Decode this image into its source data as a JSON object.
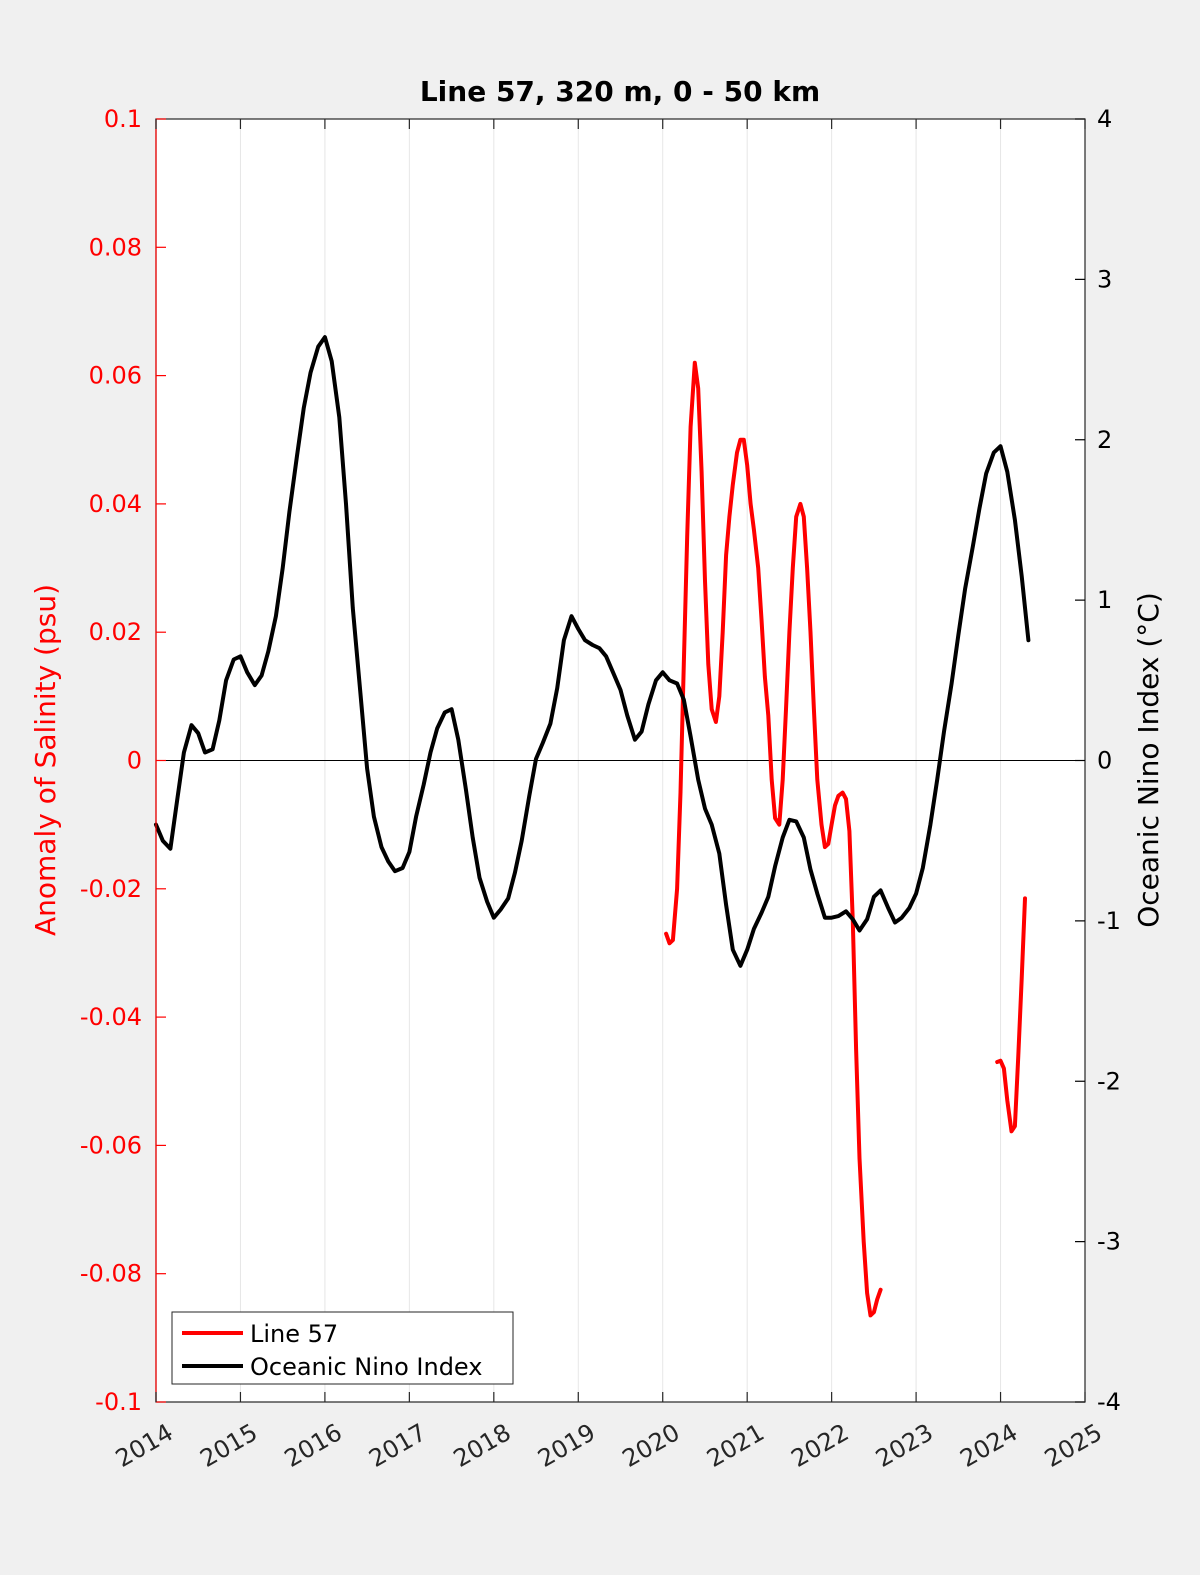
{
  "chart_data": {
    "type": "line",
    "title": "Line 57, 320 m, 0 - 50 km",
    "xlabel": "",
    "ylabel_left": "Anomaly of Salinity (psu)",
    "ylabel_right": "Oceanic Nino Index (°C)",
    "xlim": [
      2014,
      2025
    ],
    "ylim_left": [
      -0.1,
      0.1
    ],
    "ylim_right": [
      -4,
      4
    ],
    "grid": "vertical-x",
    "legend_position": "bottom-left",
    "x_ticks": [
      "2014",
      "2015",
      "2016",
      "2017",
      "2018",
      "2019",
      "2020",
      "2021",
      "2022",
      "2023",
      "2024",
      "2025"
    ],
    "y_left_ticks": [
      "-0.1",
      "-0.08",
      "-0.06",
      "-0.04",
      "-0.02",
      "0",
      "0.02",
      "0.04",
      "0.06",
      "0.08",
      "0.1"
    ],
    "y_right_ticks": [
      "-4",
      "-3",
      "-2",
      "-1",
      "0",
      "1",
      "2",
      "3",
      "4"
    ],
    "colors": {
      "salinity": "#ff0000",
      "oni": "#000000",
      "left_axis": "#ff0000",
      "right_axis": "#000000"
    },
    "series": [
      {
        "name": "Line 57",
        "axis": "left",
        "color": "#ff0000",
        "segments": [
          [
            [
              2020.04,
              -0.027
            ],
            [
              2020.08,
              -0.0285
            ],
            [
              2020.12,
              -0.028
            ],
            [
              2020.17,
              -0.02
            ],
            [
              2020.21,
              -0.005
            ],
            [
              2020.25,
              0.015
            ],
            [
              2020.29,
              0.035
            ],
            [
              2020.33,
              0.052
            ],
            [
              2020.38,
              0.062
            ],
            [
              2020.42,
              0.058
            ],
            [
              2020.46,
              0.045
            ],
            [
              2020.5,
              0.028
            ],
            [
              2020.54,
              0.015
            ],
            [
              2020.58,
              0.008
            ],
            [
              2020.63,
              0.006
            ],
            [
              2020.67,
              0.01
            ],
            [
              2020.71,
              0.02
            ],
            [
              2020.75,
              0.032
            ],
            [
              2020.79,
              0.038
            ],
            [
              2020.83,
              0.043
            ],
            [
              2020.88,
              0.048
            ],
            [
              2020.92,
              0.05
            ],
            [
              2020.96,
              0.05
            ],
            [
              2021.0,
              0.046
            ],
            [
              2021.04,
              0.04
            ],
            [
              2021.08,
              0.036
            ],
            [
              2021.13,
              0.03
            ],
            [
              2021.17,
              0.022
            ],
            [
              2021.21,
              0.013
            ],
            [
              2021.25,
              0.007
            ],
            [
              2021.29,
              -0.003
            ],
            [
              2021.33,
              -0.009
            ],
            [
              2021.38,
              -0.01
            ],
            [
              2021.42,
              -0.003
            ],
            [
              2021.46,
              0.008
            ],
            [
              2021.5,
              0.02
            ],
            [
              2021.54,
              0.03
            ],
            [
              2021.58,
              0.038
            ],
            [
              2021.63,
              0.04
            ],
            [
              2021.67,
              0.038
            ],
            [
              2021.71,
              0.03
            ],
            [
              2021.75,
              0.02
            ],
            [
              2021.79,
              0.008
            ],
            [
              2021.83,
              -0.003
            ],
            [
              2021.88,
              -0.01
            ],
            [
              2021.92,
              -0.0135
            ],
            [
              2021.96,
              -0.013
            ],
            [
              2022.0,
              -0.01
            ],
            [
              2022.04,
              -0.007
            ],
            [
              2022.08,
              -0.0055
            ],
            [
              2022.13,
              -0.005
            ],
            [
              2022.17,
              -0.006
            ],
            [
              2022.21,
              -0.011
            ],
            [
              2022.25,
              -0.025
            ],
            [
              2022.29,
              -0.045
            ],
            [
              2022.33,
              -0.062
            ],
            [
              2022.38,
              -0.075
            ],
            [
              2022.42,
              -0.083
            ],
            [
              2022.46,
              -0.0865
            ],
            [
              2022.5,
              -0.086
            ],
            [
              2022.54,
              -0.084
            ],
            [
              2022.58,
              -0.0825
            ]
          ],
          [
            [
              2023.96,
              -0.047
            ],
            [
              2024.0,
              -0.0468
            ],
            [
              2024.04,
              -0.048
            ],
            [
              2024.08,
              -0.053
            ],
            [
              2024.13,
              -0.0578
            ],
            [
              2024.17,
              -0.057
            ],
            [
              2024.21,
              -0.046
            ],
            [
              2024.25,
              -0.034
            ],
            [
              2024.29,
              -0.0215
            ]
          ]
        ]
      },
      {
        "name": "Oceanic Nino Index",
        "axis": "right",
        "color": "#000000",
        "points": [
          [
            2014.0,
            -0.4
          ],
          [
            2014.08,
            -0.5
          ],
          [
            2014.17,
            -0.55
          ],
          [
            2014.25,
            -0.25
          ],
          [
            2014.33,
            0.05
          ],
          [
            2014.42,
            0.22
          ],
          [
            2014.5,
            0.17
          ],
          [
            2014.58,
            0.05
          ],
          [
            2014.67,
            0.07
          ],
          [
            2014.75,
            0.25
          ],
          [
            2014.83,
            0.5
          ],
          [
            2014.92,
            0.63
          ],
          [
            2015.0,
            0.65
          ],
          [
            2015.08,
            0.55
          ],
          [
            2015.17,
            0.47
          ],
          [
            2015.25,
            0.53
          ],
          [
            2015.33,
            0.68
          ],
          [
            2015.42,
            0.9
          ],
          [
            2015.5,
            1.2
          ],
          [
            2015.58,
            1.55
          ],
          [
            2015.67,
            1.9
          ],
          [
            2015.75,
            2.2
          ],
          [
            2015.83,
            2.42
          ],
          [
            2015.92,
            2.58
          ],
          [
            2016.0,
            2.64
          ],
          [
            2016.08,
            2.49
          ],
          [
            2016.17,
            2.14
          ],
          [
            2016.25,
            1.6
          ],
          [
            2016.33,
            0.95
          ],
          [
            2016.42,
            0.42
          ],
          [
            2016.5,
            -0.05
          ],
          [
            2016.58,
            -0.35
          ],
          [
            2016.67,
            -0.54
          ],
          [
            2016.75,
            -0.63
          ],
          [
            2016.83,
            -0.69
          ],
          [
            2016.92,
            -0.67
          ],
          [
            2017.0,
            -0.57
          ],
          [
            2017.08,
            -0.35
          ],
          [
            2017.17,
            -0.15
          ],
          [
            2017.25,
            0.05
          ],
          [
            2017.33,
            0.2
          ],
          [
            2017.42,
            0.3
          ],
          [
            2017.5,
            0.32
          ],
          [
            2017.58,
            0.13
          ],
          [
            2017.67,
            -0.18
          ],
          [
            2017.75,
            -0.48
          ],
          [
            2017.83,
            -0.73
          ],
          [
            2017.92,
            -0.88
          ],
          [
            2018.0,
            -0.98
          ],
          [
            2018.08,
            -0.93
          ],
          [
            2018.17,
            -0.86
          ],
          [
            2018.25,
            -0.7
          ],
          [
            2018.33,
            -0.5
          ],
          [
            2018.42,
            -0.22
          ],
          [
            2018.5,
            0.01
          ],
          [
            2018.58,
            0.11
          ],
          [
            2018.67,
            0.23
          ],
          [
            2018.75,
            0.45
          ],
          [
            2018.83,
            0.75
          ],
          [
            2018.92,
            0.9
          ],
          [
            2019.0,
            0.82
          ],
          [
            2019.08,
            0.75
          ],
          [
            2019.17,
            0.72
          ],
          [
            2019.25,
            0.7
          ],
          [
            2019.33,
            0.65
          ],
          [
            2019.42,
            0.54
          ],
          [
            2019.5,
            0.44
          ],
          [
            2019.58,
            0.28
          ],
          [
            2019.67,
            0.13
          ],
          [
            2019.75,
            0.18
          ],
          [
            2019.83,
            0.35
          ],
          [
            2019.92,
            0.5
          ],
          [
            2020.0,
            0.55
          ],
          [
            2020.08,
            0.5
          ],
          [
            2020.17,
            0.48
          ],
          [
            2020.25,
            0.38
          ],
          [
            2020.33,
            0.15
          ],
          [
            2020.42,
            -0.12
          ],
          [
            2020.5,
            -0.3
          ],
          [
            2020.58,
            -0.4
          ],
          [
            2020.67,
            -0.58
          ],
          [
            2020.75,
            -0.9
          ],
          [
            2020.83,
            -1.18
          ],
          [
            2020.92,
            -1.28
          ],
          [
            2021.0,
            -1.18
          ],
          [
            2021.08,
            -1.05
          ],
          [
            2021.17,
            -0.95
          ],
          [
            2021.25,
            -0.85
          ],
          [
            2021.33,
            -0.66
          ],
          [
            2021.42,
            -0.48
          ],
          [
            2021.5,
            -0.37
          ],
          [
            2021.58,
            -0.38
          ],
          [
            2021.67,
            -0.48
          ],
          [
            2021.75,
            -0.68
          ],
          [
            2021.83,
            -0.83
          ],
          [
            2021.92,
            -0.98
          ],
          [
            2022.0,
            -0.98
          ],
          [
            2022.08,
            -0.97
          ],
          [
            2022.17,
            -0.94
          ],
          [
            2022.25,
            -0.99
          ],
          [
            2022.33,
            -1.06
          ],
          [
            2022.42,
            -0.99
          ],
          [
            2022.5,
            -0.85
          ],
          [
            2022.58,
            -0.81
          ],
          [
            2022.67,
            -0.92
          ],
          [
            2022.75,
            -1.01
          ],
          [
            2022.83,
            -0.98
          ],
          [
            2022.92,
            -0.92
          ],
          [
            2023.0,
            -0.83
          ],
          [
            2023.08,
            -0.67
          ],
          [
            2023.17,
            -0.4
          ],
          [
            2023.25,
            -0.12
          ],
          [
            2023.33,
            0.18
          ],
          [
            2023.42,
            0.48
          ],
          [
            2023.5,
            0.78
          ],
          [
            2023.58,
            1.07
          ],
          [
            2023.67,
            1.33
          ],
          [
            2023.75,
            1.57
          ],
          [
            2023.83,
            1.79
          ],
          [
            2023.92,
            1.92
          ],
          [
            2024.0,
            1.96
          ],
          [
            2024.08,
            1.8
          ],
          [
            2024.17,
            1.5
          ],
          [
            2024.25,
            1.15
          ],
          [
            2024.33,
            0.75
          ]
        ]
      }
    ]
  }
}
